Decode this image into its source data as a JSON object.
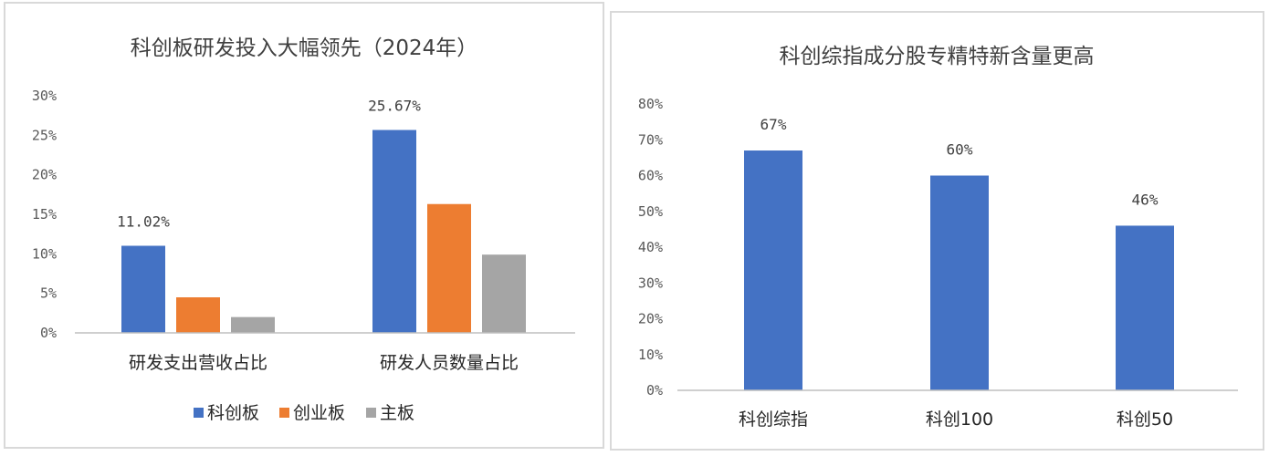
{
  "chart_data": [
    {
      "type": "bar",
      "title": "科创板研发投入大幅领先（2024年）",
      "categories": [
        "研发支出营收占比",
        "研发人员数量占比"
      ],
      "series": [
        {
          "name": "科创板",
          "values": [
            11.02,
            25.67
          ],
          "color": "#4472c4"
        },
        {
          "name": "创业板",
          "values": [
            4.5,
            16.3
          ],
          "color": "#ed7d31"
        },
        {
          "name": "主板",
          "values": [
            2.0,
            9.9
          ],
          "color": "#a5a5a5"
        }
      ],
      "data_labels": [
        "11.02%",
        "25.67%"
      ],
      "yticks": [
        "0%",
        "5%",
        "10%",
        "15%",
        "20%",
        "25%",
        "30%"
      ],
      "ylim": [
        0,
        30
      ],
      "legend": "bottom",
      "grid": false
    },
    {
      "type": "bar",
      "title": "科创综指成分股专精特新含量更高",
      "categories": [
        "科创综指",
        "科创100",
        "科创50"
      ],
      "series": [
        {
          "values": [
            67,
            60,
            46
          ],
          "color": "#4472c4"
        }
      ],
      "data_labels": [
        "67%",
        "60%",
        "46%"
      ],
      "yticks": [
        "0%",
        "10%",
        "20%",
        "30%",
        "40%",
        "50%",
        "60%",
        "70%",
        "80%"
      ],
      "ylim": [
        0,
        80
      ],
      "legend": "none",
      "grid": false
    }
  ]
}
